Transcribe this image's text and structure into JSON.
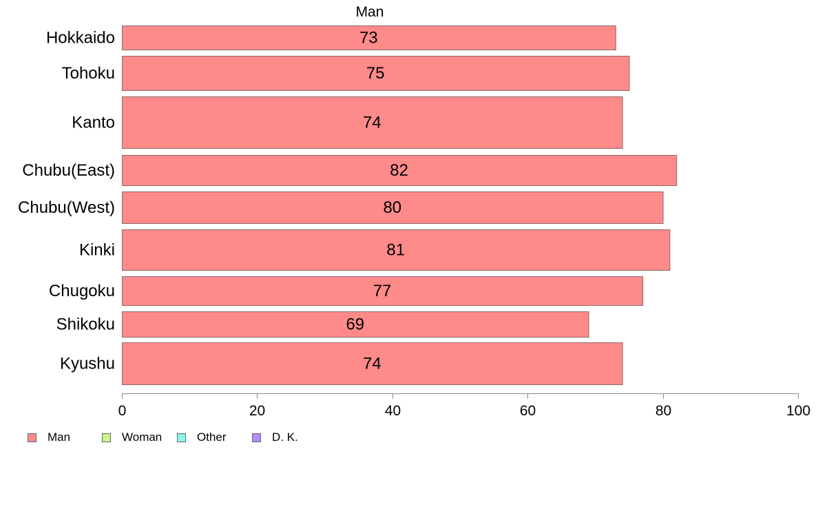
{
  "chart_data": {
    "type": "bar",
    "orientation": "horizontal",
    "title": "Man",
    "categories": [
      "Hokkaido",
      "Tohoku",
      "Kanto",
      "Chubu(East)",
      "Chubu(West)",
      "Kinki",
      "Chugoku",
      "Shikoku",
      "Kyushu"
    ],
    "series": [
      {
        "name": "Man",
        "values": [
          73,
          75,
          74,
          82,
          80,
          81,
          77,
          69,
          74
        ]
      }
    ],
    "data_labels": [
      "73",
      "75",
      "74",
      "82",
      "80",
      "81",
      "77",
      "69",
      "74"
    ],
    "xlim": [
      0,
      100
    ],
    "xticks": [
      "0",
      "20",
      "40",
      "60",
      "80",
      "100"
    ],
    "xlabel": "",
    "ylabel": "",
    "grid": false,
    "legend_position": "bottom-left"
  },
  "legend": [
    {
      "label": "Man",
      "color": "#ff8a8a"
    },
    {
      "label": "Woman",
      "color": "#c8f58c"
    },
    {
      "label": "Other",
      "color": "#8cf5f0"
    },
    {
      "label": "D. K.",
      "color": "#b88cf5"
    }
  ],
  "colors": {
    "bar_fill": "#ff8a8a",
    "bar_stroke": "#8a6a6a",
    "axis": "#888888"
  }
}
